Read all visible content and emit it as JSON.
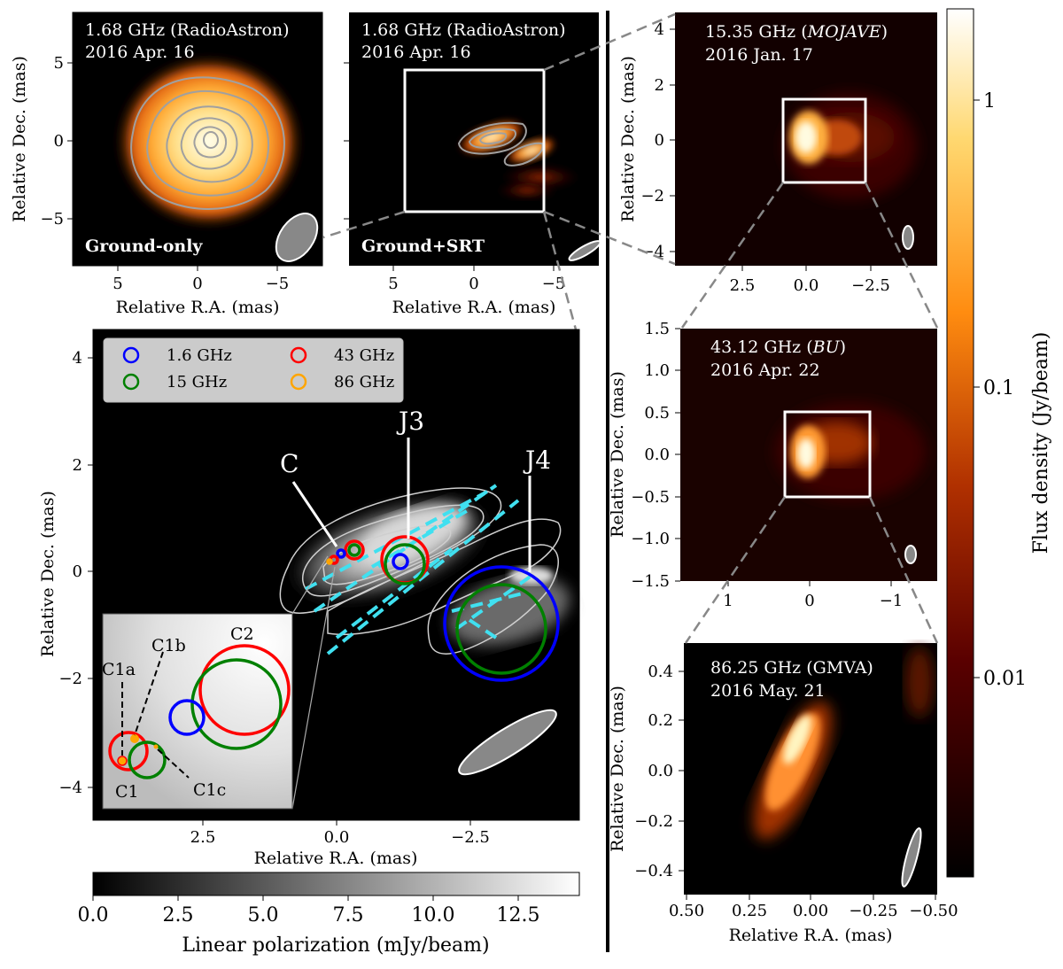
{
  "panels": {
    "ground_only": {
      "title_line1": "1.68 GHz (RadioAstron)",
      "title_line2": "2016 Apr. 16",
      "label": "Ground-only",
      "xlabel": "Relative R.A. (mas)",
      "ylabel": "Relative Dec. (mas)",
      "xticks": [
        "5",
        "0",
        "−5"
      ],
      "yticks": [
        "5",
        "0",
        "−5"
      ]
    },
    "ground_srt": {
      "title_line1": "1.68 GHz (RadioAstron)",
      "title_line2": "2016 Apr. 16",
      "label": "Ground+SRT",
      "xlabel": "Relative R.A. (mas)",
      "xticks": [
        "5",
        "0",
        "−5"
      ]
    },
    "mojave": {
      "title_line1": "15.35 GHz (",
      "title_italic": "MOJAVE",
      "title_close": ")",
      "title_line2": "2016 Jan. 17",
      "ylabel": "Relative Dec. (mas)",
      "xticks": [
        "2.5",
        "0.0",
        "−2.5"
      ],
      "yticks": [
        "4",
        "2",
        "0",
        "−2",
        "−4"
      ]
    },
    "bu": {
      "title_line1": "43.12 GHz (",
      "title_italic": "BU",
      "title_close": ")",
      "title_line2": "2016 Apr. 22",
      "ylabel": "Relative Dec. (mas)",
      "xticks": [
        "1",
        "0",
        "−1"
      ],
      "yticks": [
        "1.5",
        "1.0",
        "0.5",
        "0.0",
        "−0.5",
        "−1.0",
        "−1.5"
      ]
    },
    "gmva": {
      "title_line1": "86.25 GHz (GMVA)",
      "title_line2": "2016 May. 21",
      "xlabel": "Relative R.A. (mas)",
      "ylabel": "Relative Dec. (mas)",
      "xticks": [
        "0.50",
        "0.25",
        "0.00",
        "−0.25",
        "−0.50"
      ],
      "yticks": [
        "0.4",
        "0.2",
        "0.0",
        "−0.2",
        "−0.4"
      ]
    },
    "main": {
      "xlabel": "Relative R.A. (mas)",
      "ylabel": "Relative Dec. (mas)",
      "xticks": [
        "2.5",
        "0.0",
        "−2.5"
      ],
      "yticks": [
        "4",
        "2",
        "0",
        "−2",
        "−4"
      ],
      "labels": {
        "C": "C",
        "J3": "J3",
        "J4": "J4"
      },
      "legend": [
        {
          "label": "1.6 GHz",
          "color": "#0000ff"
        },
        {
          "label": "15 GHz",
          "color": "#008000"
        },
        {
          "label": "43 GHz",
          "color": "#ff0000"
        },
        {
          "label": "86 GHz",
          "color": "#ffa500"
        }
      ],
      "inset_labels": {
        "C1a": "C1a",
        "C1b": "C1b",
        "C2": "C2",
        "C1": "C1",
        "C1c": "C1c"
      }
    }
  },
  "colorbars": {
    "flux": {
      "label": "Flux density (Jy/beam)",
      "ticks": [
        "1",
        "0.1",
        "0.01"
      ],
      "colormap": "afmhot"
    },
    "polarization": {
      "label": "Linear polarization (mJy/beam)",
      "ticks": [
        "0.0",
        "2.5",
        "5.0",
        "7.5",
        "10.0",
        "12.5"
      ],
      "colormap": "gray"
    }
  },
  "colors": {
    "contour": "#a0a0a0",
    "evpa": "#40e0f0",
    "frame": "#ffffff"
  }
}
